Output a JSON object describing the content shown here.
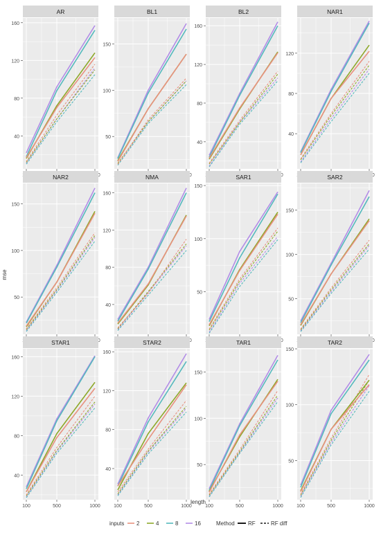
{
  "figure": {
    "xlabel": "length",
    "ylabel": "mse",
    "legend": {
      "inputs_title": "inputs",
      "method_title": "Method",
      "inputs": [
        "2",
        "4",
        "8",
        "16"
      ],
      "methods": [
        "RF",
        "RF diff"
      ]
    }
  },
  "colors": {
    "2": "#e8917f",
    "4": "#8ea82a",
    "8": "#54b9bd",
    "16": "#b28ce6",
    "panel_bg": "#ebebeb",
    "strip_bg": "#d9d9d9",
    "grid": "#ffffff"
  },
  "chart_data": [
    {
      "type": "line",
      "title": "AR",
      "x": [
        100,
        500,
        1000
      ],
      "ylim": [
        5,
        165
      ],
      "yticks": [
        40,
        80,
        120,
        160
      ],
      "series": [
        {
          "inputs": "2",
          "method": "RF",
          "values": [
            17,
            70,
            123
          ]
        },
        {
          "inputs": "4",
          "method": "RF",
          "values": [
            16,
            72,
            128
          ]
        },
        {
          "inputs": "8",
          "method": "RF",
          "values": [
            18,
            88,
            152
          ]
        },
        {
          "inputs": "16",
          "method": "RF",
          "values": [
            22,
            92,
            157
          ]
        },
        {
          "inputs": "2",
          "method": "RF diff",
          "values": [
            13,
            62,
            116
          ]
        },
        {
          "inputs": "4",
          "method": "RF diff",
          "values": [
            12,
            58,
            110
          ]
        },
        {
          "inputs": "8",
          "method": "RF diff",
          "values": [
            10,
            55,
            105
          ]
        },
        {
          "inputs": "16",
          "method": "RF diff",
          "values": [
            11,
            58,
            112
          ]
        }
      ]
    },
    {
      "type": "line",
      "title": "BL1",
      "x": [
        100,
        500,
        1000
      ],
      "ylim": [
        15,
        178
      ],
      "yticks": [
        50,
        100,
        150
      ],
      "series": [
        {
          "inputs": "2",
          "method": "RF",
          "values": [
            23,
            80,
            139
          ]
        },
        {
          "inputs": "4",
          "method": "RF",
          "values": [
            24,
            80,
            139
          ]
        },
        {
          "inputs": "8",
          "method": "RF",
          "values": [
            26,
            97,
            166
          ]
        },
        {
          "inputs": "16",
          "method": "RF",
          "values": [
            27,
            100,
            172
          ]
        },
        {
          "inputs": "2",
          "method": "RF diff",
          "values": [
            20,
            68,
            113
          ]
        },
        {
          "inputs": "4",
          "method": "RF diff",
          "values": [
            21,
            66,
            110
          ]
        },
        {
          "inputs": "8",
          "method": "RF diff",
          "values": [
            19,
            64,
            106
          ]
        },
        {
          "inputs": "16",
          "method": "RF diff",
          "values": [
            20,
            66,
            110
          ]
        }
      ]
    },
    {
      "type": "line",
      "title": "BL2",
      "x": [
        100,
        500,
        1000
      ],
      "ylim": [
        12,
        168
      ],
      "yticks": [
        40,
        80,
        120,
        160
      ],
      "series": [
        {
          "inputs": "2",
          "method": "RF",
          "values": [
            23,
            75,
            132
          ]
        },
        {
          "inputs": "4",
          "method": "RF",
          "values": [
            22,
            74,
            133
          ]
        },
        {
          "inputs": "8",
          "method": "RF",
          "values": [
            24,
            88,
            160
          ]
        },
        {
          "inputs": "16",
          "method": "RF",
          "values": [
            26,
            90,
            164
          ]
        },
        {
          "inputs": "2",
          "method": "RF diff",
          "values": [
            18,
            62,
            113
          ]
        },
        {
          "inputs": "4",
          "method": "RF diff",
          "values": [
            17,
            60,
            110
          ]
        },
        {
          "inputs": "8",
          "method": "RF diff",
          "values": [
            14,
            58,
            103
          ]
        },
        {
          "inputs": "16",
          "method": "RF diff",
          "values": [
            15,
            60,
            106
          ]
        }
      ]
    },
    {
      "type": "line",
      "title": "NAR1",
      "x": [
        100,
        500,
        1000
      ],
      "ylim": [
        5,
        155
      ],
      "yticks": [
        40,
        80,
        120
      ],
      "series": [
        {
          "inputs": "2",
          "method": "RF",
          "values": [
            19,
            75,
            122
          ]
        },
        {
          "inputs": "4",
          "method": "RF",
          "values": [
            19,
            75,
            128
          ]
        },
        {
          "inputs": "8",
          "method": "RF",
          "values": [
            21,
            82,
            150
          ]
        },
        {
          "inputs": "16",
          "method": "RF",
          "values": [
            22,
            84,
            152
          ]
        },
        {
          "inputs": "2",
          "method": "RF diff",
          "values": [
            15,
            60,
            112
          ]
        },
        {
          "inputs": "4",
          "method": "RF diff",
          "values": [
            14,
            58,
            108
          ]
        },
        {
          "inputs": "8",
          "method": "RF diff",
          "values": [
            11,
            52,
            100
          ]
        },
        {
          "inputs": "16",
          "method": "RF diff",
          "values": [
            12,
            55,
            104
          ]
        }
      ]
    },
    {
      "type": "line",
      "title": "NAR2",
      "x": [
        100,
        500,
        1000
      ],
      "ylim": [
        10,
        172
      ],
      "yticks": [
        50,
        100,
        150
      ],
      "series": [
        {
          "inputs": "2",
          "method": "RF",
          "values": [
            19,
            66,
            140
          ]
        },
        {
          "inputs": "4",
          "method": "RF",
          "values": [
            18,
            66,
            142
          ]
        },
        {
          "inputs": "8",
          "method": "RF",
          "values": [
            22,
            82,
            162
          ]
        },
        {
          "inputs": "16",
          "method": "RF",
          "values": [
            23,
            84,
            167
          ]
        },
        {
          "inputs": "2",
          "method": "RF diff",
          "values": [
            16,
            60,
            119
          ]
        },
        {
          "inputs": "4",
          "method": "RF diff",
          "values": [
            15,
            58,
            116
          ]
        },
        {
          "inputs": "8",
          "method": "RF diff",
          "values": [
            13,
            55,
            110
          ]
        },
        {
          "inputs": "16",
          "method": "RF diff",
          "values": [
            14,
            57,
            114
          ]
        }
      ]
    },
    {
      "type": "line",
      "title": "NMA",
      "x": [
        100,
        500,
        1000
      ],
      "ylim": [
        8,
        170
      ],
      "yticks": [
        40,
        80,
        120,
        160
      ],
      "series": [
        {
          "inputs": "2",
          "method": "RF",
          "values": [
            20,
            62,
            135
          ]
        },
        {
          "inputs": "4",
          "method": "RF",
          "values": [
            19,
            61,
            136
          ]
        },
        {
          "inputs": "8",
          "method": "RF",
          "values": [
            22,
            78,
            160
          ]
        },
        {
          "inputs": "16",
          "method": "RF",
          "values": [
            24,
            80,
            165
          ]
        },
        {
          "inputs": "2",
          "method": "RF diff",
          "values": [
            15,
            52,
            110
          ]
        },
        {
          "inputs": "4",
          "method": "RF diff",
          "values": [
            14,
            54,
            105
          ]
        },
        {
          "inputs": "8",
          "method": "RF diff",
          "values": [
            12,
            50,
            98
          ]
        },
        {
          "inputs": "16",
          "method": "RF diff",
          "values": [
            13,
            53,
            103
          ]
        }
      ]
    },
    {
      "type": "line",
      "title": "SAR1",
      "x": [
        100,
        500,
        1000
      ],
      "ylim": [
        10,
        152
      ],
      "yticks": [
        50,
        100,
        150
      ],
      "series": [
        {
          "inputs": "2",
          "method": "RF",
          "values": [
            19,
            70,
            123
          ]
        },
        {
          "inputs": "4",
          "method": "RF",
          "values": [
            18,
            71,
            125
          ]
        },
        {
          "inputs": "8",
          "method": "RF",
          "values": [
            22,
            82,
            142
          ]
        },
        {
          "inputs": "16",
          "method": "RF",
          "values": [
            24,
            88,
            144
          ]
        },
        {
          "inputs": "2",
          "method": "RF diff",
          "values": [
            15,
            62,
            110
          ]
        },
        {
          "inputs": "4",
          "method": "RF diff",
          "values": [
            14,
            60,
            107
          ]
        },
        {
          "inputs": "8",
          "method": "RF diff",
          "values": [
            11,
            55,
            99
          ]
        },
        {
          "inputs": "16",
          "method": "RF diff",
          "values": [
            12,
            58,
            102
          ]
        }
      ]
    },
    {
      "type": "line",
      "title": "SAR2",
      "x": [
        100,
        500,
        1000
      ],
      "ylim": [
        10,
        180
      ],
      "yticks": [
        50,
        100,
        150
      ],
      "series": [
        {
          "inputs": "2",
          "method": "RF",
          "values": [
            21,
            78,
            138
          ]
        },
        {
          "inputs": "4",
          "method": "RF",
          "values": [
            20,
            78,
            140
          ]
        },
        {
          "inputs": "8",
          "method": "RF",
          "values": [
            23,
            88,
            165
          ]
        },
        {
          "inputs": "16",
          "method": "RF",
          "values": [
            25,
            90,
            172
          ]
        },
        {
          "inputs": "2",
          "method": "RF diff",
          "values": [
            16,
            62,
            116
          ]
        },
        {
          "inputs": "4",
          "method": "RF diff",
          "values": [
            15,
            60,
            112
          ]
        },
        {
          "inputs": "8",
          "method": "RF diff",
          "values": [
            13,
            56,
            106
          ]
        },
        {
          "inputs": "16",
          "method": "RF diff",
          "values": [
            14,
            58,
            110
          ]
        }
      ]
    },
    {
      "type": "line",
      "title": "STAR1",
      "x": [
        100,
        500,
        1000
      ],
      "ylim": [
        15,
        168
      ],
      "yticks": [
        40,
        80,
        120,
        160
      ],
      "series": [
        {
          "inputs": "2",
          "method": "RF",
          "values": [
            23,
            78,
            128
          ]
        },
        {
          "inputs": "4",
          "method": "RF",
          "values": [
            23,
            82,
            134
          ]
        },
        {
          "inputs": "8",
          "method": "RF",
          "values": [
            26,
            95,
            160
          ]
        },
        {
          "inputs": "16",
          "method": "RF",
          "values": [
            28,
            97,
            161
          ]
        },
        {
          "inputs": "2",
          "method": "RF diff",
          "values": [
            20,
            68,
            120
          ]
        },
        {
          "inputs": "4",
          "method": "RF diff",
          "values": [
            19,
            65,
            114
          ]
        },
        {
          "inputs": "8",
          "method": "RF diff",
          "values": [
            17,
            62,
            108
          ]
        },
        {
          "inputs": "16",
          "method": "RF diff",
          "values": [
            18,
            64,
            112
          ]
        }
      ]
    },
    {
      "type": "line",
      "title": "STAR2",
      "x": [
        100,
        500,
        1000
      ],
      "ylim": [
        8,
        163
      ],
      "yticks": [
        40,
        80,
        120,
        160
      ],
      "series": [
        {
          "inputs": "2",
          "method": "RF",
          "values": [
            22,
            70,
            126
          ]
        },
        {
          "inputs": "4",
          "method": "RF",
          "values": [
            18,
            76,
            128
          ]
        },
        {
          "inputs": "8",
          "method": "RF",
          "values": [
            22,
            88,
            150
          ]
        },
        {
          "inputs": "16",
          "method": "RF",
          "values": [
            24,
            92,
            158
          ]
        },
        {
          "inputs": "2",
          "method": "RF diff",
          "values": [
            16,
            60,
            110
          ]
        },
        {
          "inputs": "4",
          "method": "RF diff",
          "values": [
            14,
            58,
            104
          ]
        },
        {
          "inputs": "8",
          "method": "RF diff",
          "values": [
            12,
            55,
            98
          ]
        },
        {
          "inputs": "16",
          "method": "RF diff",
          "values": [
            13,
            57,
            102
          ]
        }
      ]
    },
    {
      "type": "line",
      "title": "TAR1",
      "x": [
        100,
        500,
        1000
      ],
      "ylim": [
        12,
        175
      ],
      "yticks": [
        50,
        100,
        150
      ],
      "series": [
        {
          "inputs": "2",
          "method": "RF",
          "values": [
            20,
            82,
            140
          ]
        },
        {
          "inputs": "4",
          "method": "RF",
          "values": [
            21,
            80,
            142
          ]
        },
        {
          "inputs": "8",
          "method": "RF",
          "values": [
            22,
            92,
            163
          ]
        },
        {
          "inputs": "16",
          "method": "RF",
          "values": [
            24,
            94,
            168
          ]
        },
        {
          "inputs": "2",
          "method": "RF diff",
          "values": [
            18,
            66,
            130
          ]
        },
        {
          "inputs": "4",
          "method": "RF diff",
          "values": [
            17,
            64,
            125
          ]
        },
        {
          "inputs": "8",
          "method": "RF diff",
          "values": [
            15,
            62,
            118
          ]
        },
        {
          "inputs": "16",
          "method": "RF diff",
          "values": [
            16,
            63,
            122
          ]
        }
      ]
    },
    {
      "type": "line",
      "title": "TAR2",
      "x": [
        100,
        500,
        1000
      ],
      "ylim": [
        15,
        150
      ],
      "yticks": [
        50,
        100,
        150
      ],
      "series": [
        {
          "inputs": "2",
          "method": "RF",
          "values": [
            22,
            78,
            118
          ]
        },
        {
          "inputs": "4",
          "method": "RF",
          "values": [
            23,
            78,
            122
          ]
        },
        {
          "inputs": "8",
          "method": "RF",
          "values": [
            26,
            92,
            140
          ]
        },
        {
          "inputs": "16",
          "method": "RF",
          "values": [
            28,
            95,
            145
          ]
        },
        {
          "inputs": "2",
          "method": "RF diff",
          "values": [
            20,
            70,
            127
          ]
        },
        {
          "inputs": "4",
          "method": "RF diff",
          "values": [
            19,
            68,
            122
          ]
        },
        {
          "inputs": "8",
          "method": "RF diff",
          "values": [
            17,
            64,
            112
          ]
        },
        {
          "inputs": "16",
          "method": "RF diff",
          "values": [
            18,
            66,
            117
          ]
        }
      ]
    }
  ]
}
